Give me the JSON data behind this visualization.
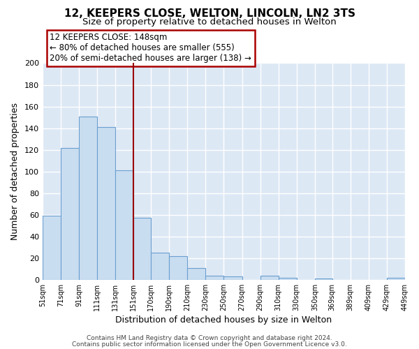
{
  "title": "12, KEEPERS CLOSE, WELTON, LINCOLN, LN2 3TS",
  "subtitle": "Size of property relative to detached houses in Welton",
  "xlabel": "Distribution of detached houses by size in Welton",
  "ylabel": "Number of detached properties",
  "bar_color": "#c9ddf0",
  "bar_edge_color": "#6a9fd0",
  "all_edges": [
    51,
    71,
    91,
    111,
    131,
    151,
    170,
    190,
    210,
    230,
    250,
    270,
    290,
    310,
    330,
    350,
    369,
    389,
    409,
    429,
    449
  ],
  "all_heights": [
    59,
    122,
    151,
    141,
    101,
    57,
    25,
    22,
    11,
    4,
    3,
    0,
    4,
    2,
    0,
    1,
    0,
    0,
    0,
    2
  ],
  "x_tick_labels": [
    "51sqm",
    "71sqm",
    "91sqm",
    "111sqm",
    "131sqm",
    "151sqm",
    "170sqm",
    "190sqm",
    "210sqm",
    "230sqm",
    "250sqm",
    "270sqm",
    "290sqm",
    "310sqm",
    "330sqm",
    "350sqm",
    "369sqm",
    "389sqm",
    "409sqm",
    "429sqm",
    "449sqm"
  ],
  "ylim": [
    0,
    200
  ],
  "yticks": [
    0,
    20,
    40,
    60,
    80,
    100,
    120,
    140,
    160,
    180,
    200
  ],
  "red_line_x": 151,
  "annotation_title": "12 KEEPERS CLOSE: 148sqm",
  "annotation_line1": "← 80% of detached houses are smaller (555)",
  "annotation_line2": "20% of semi-detached houses are larger (138) →",
  "annotation_box_color": "white",
  "annotation_box_edge": "#aa0000",
  "footer1": "Contains HM Land Registry data © Crown copyright and database right 2024.",
  "footer2": "Contains public sector information licensed under the Open Government Licence v3.0.",
  "fig_bg_color": "#ffffff",
  "plot_bg_color": "#dde8f5",
  "grid_color": "#ffffff",
  "title_fontsize": 11,
  "subtitle_fontsize": 9.5
}
